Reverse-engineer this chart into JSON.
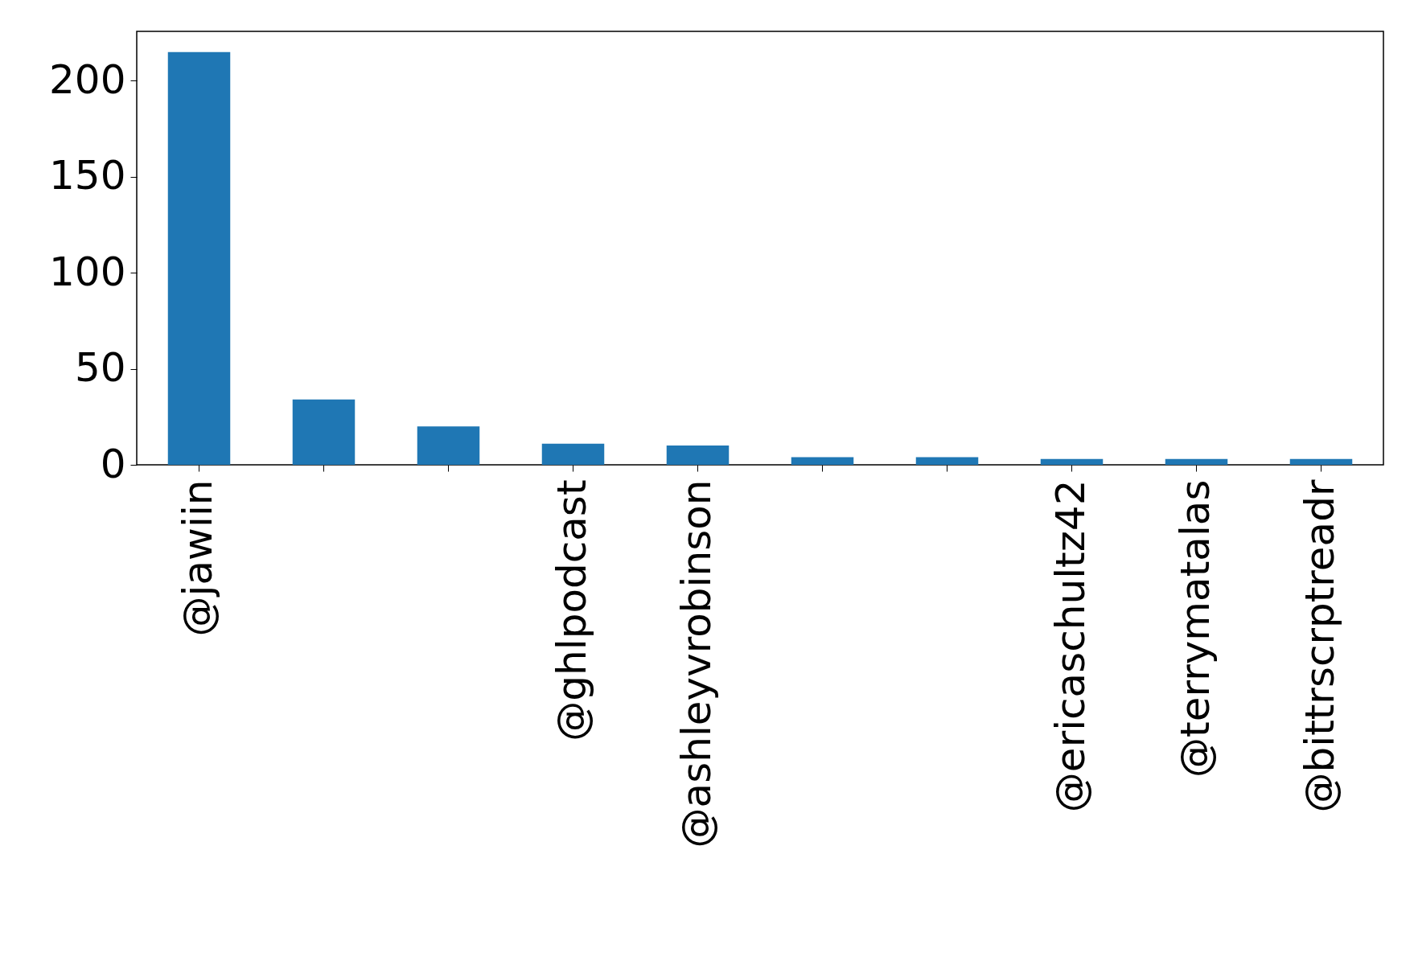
{
  "chart_data": {
    "type": "bar",
    "categories": [
      "@jawiin",
      null,
      null,
      "@ghlpodcast",
      "@ashleyvrobinson",
      null,
      null,
      "@ericaschultz42",
      "@terrymatalas",
      "@bittrscrptreadr"
    ],
    "values": [
      215,
      34,
      20,
      11,
      10,
      4,
      4,
      3,
      3,
      3
    ],
    "color": "#1f77b4",
    "ylim": [
      0,
      225.75
    ],
    "yticks": [
      0,
      50,
      100,
      150,
      200
    ],
    "grid": false
  }
}
